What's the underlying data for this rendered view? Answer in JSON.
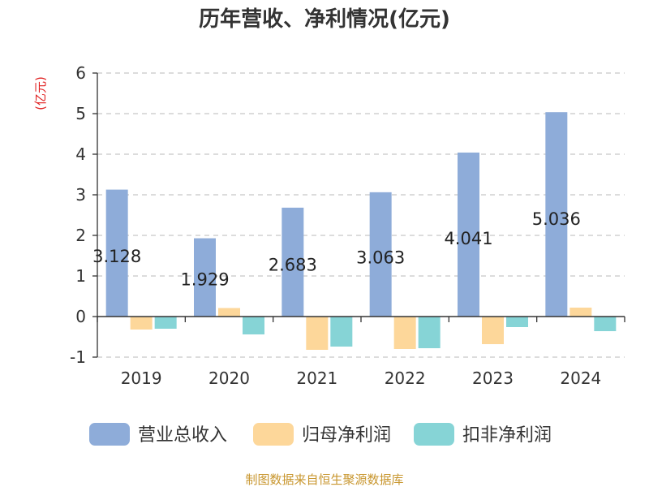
{
  "chart_data": {
    "type": "bar",
    "title": "历年营收、净利情况(亿元)",
    "ylabel": "(亿元)",
    "ylim": [
      -1,
      6
    ],
    "yticks": [
      -1,
      0,
      1,
      2,
      3,
      4,
      5,
      6
    ],
    "grid": true,
    "legend_position": "bottom",
    "categories": [
      "2019",
      "2020",
      "2021",
      "2022",
      "2023",
      "2024"
    ],
    "series": [
      {
        "name": "营业总收入",
        "color": "#8eacd9",
        "values": [
          3.128,
          1.929,
          2.683,
          3.063,
          4.041,
          5.036
        ],
        "labels": [
          "3.128",
          "1.929",
          "2.683",
          "3.063",
          "4.041",
          "5.036"
        ]
      },
      {
        "name": "归母净利润",
        "color": "#fdd79a",
        "values": [
          -0.32,
          0.21,
          -0.82,
          -0.8,
          -0.68,
          0.22
        ]
      },
      {
        "name": "扣非净利润",
        "color": "#86d4d6",
        "values": [
          -0.3,
          -0.44,
          -0.74,
          -0.78,
          -0.26,
          -0.36
        ]
      }
    ]
  },
  "source": "制图数据来自恒生聚源数据库"
}
